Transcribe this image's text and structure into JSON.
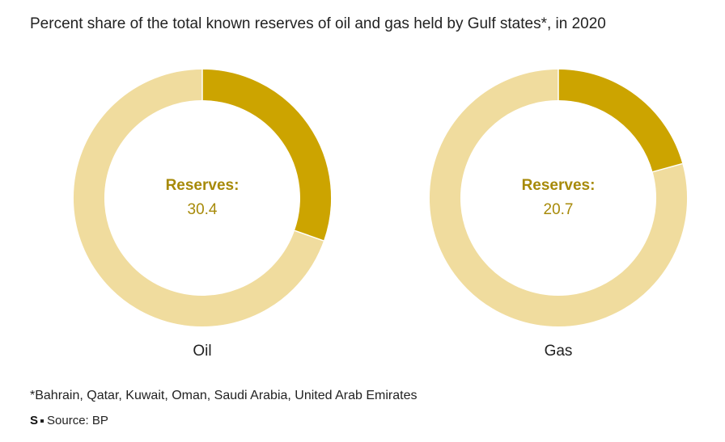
{
  "title": "Percent share of the total known reserves of oil and gas held by Gulf states*, in 2020",
  "footnote": "*Bahrain, Qatar, Kuwait, Oman, Saudi Arabia, United Arab Emirates",
  "source": {
    "logo": "S",
    "text": "Source: BP"
  },
  "colors": {
    "share": "#cca400",
    "remainder": "#f0dc9e",
    "label_text": "#a78a09"
  },
  "chart_data": [
    {
      "type": "pie",
      "category": "Oil",
      "center_label": "Reserves:",
      "center_value": "30.4",
      "value": 30.4,
      "total": 100
    },
    {
      "type": "pie",
      "category": "Gas",
      "center_label": "Reserves:",
      "center_value": "20.7",
      "value": 20.7,
      "total": 100
    }
  ]
}
